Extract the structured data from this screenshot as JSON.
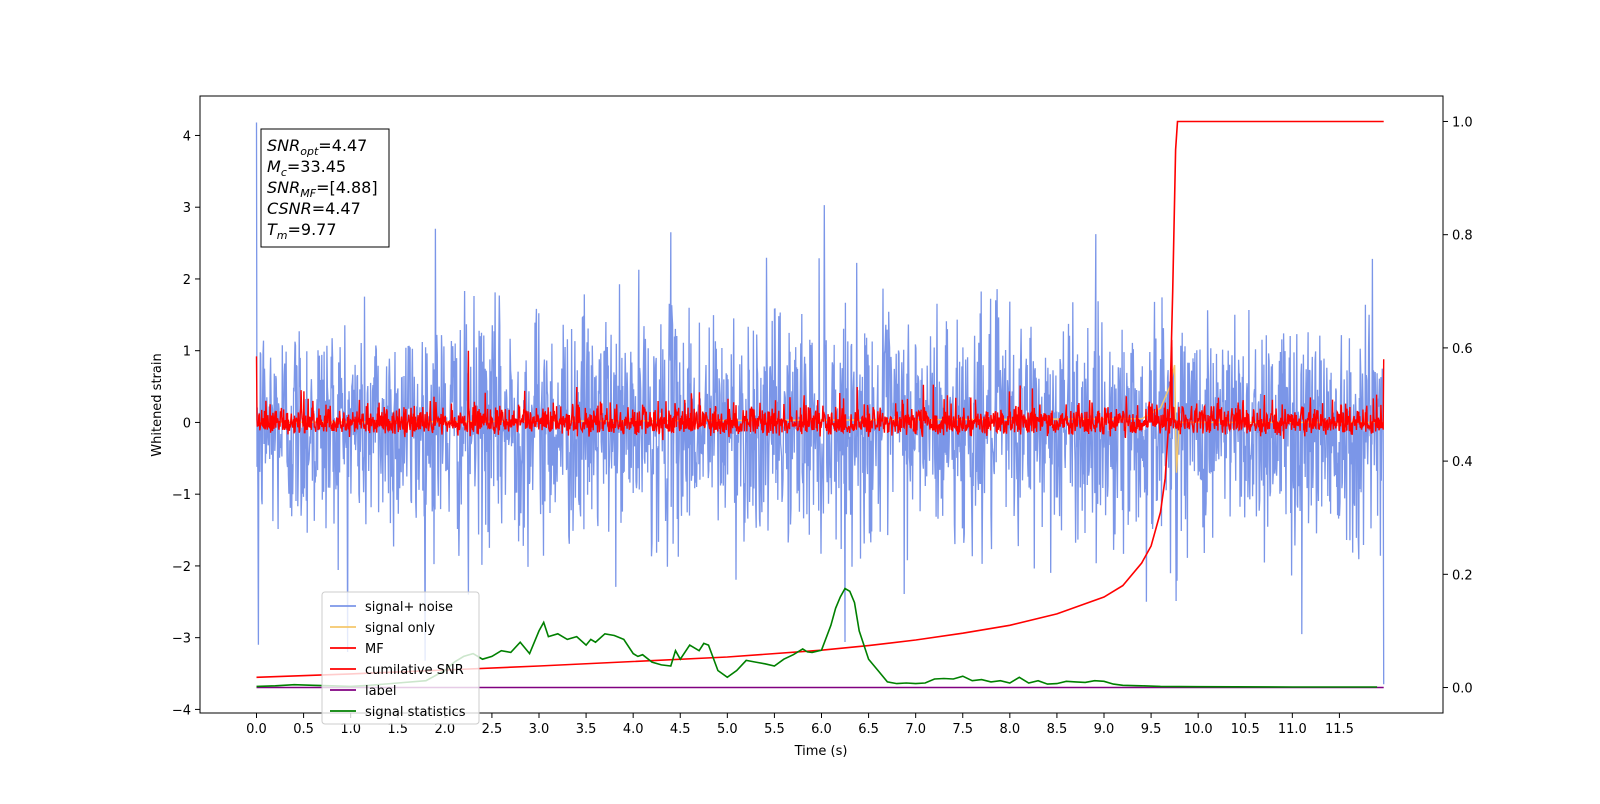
{
  "chart_data": {
    "type": "line",
    "title": "",
    "xlabel": "Time (s)",
    "ylabel": "Whitened strain",
    "xlim": [
      -0.6,
      12.6
    ],
    "ylim": [
      -4.05,
      4.55
    ],
    "y2lim": [
      -0.045,
      1.045
    ],
    "x_ticks": [
      0.0,
      0.5,
      1.0,
      1.5,
      2.0,
      2.5,
      3.0,
      3.5,
      4.0,
      4.5,
      5.0,
      5.5,
      6.0,
      6.5,
      7.0,
      7.5,
      8.0,
      8.5,
      9.0,
      9.5,
      10.0,
      10.5,
      11.0,
      11.5
    ],
    "x_tick_labels": [
      "0.0",
      "0.5",
      "1.0",
      "1.5",
      "2.0",
      "2.5",
      "3.0",
      "3.5",
      "4.0",
      "4.5",
      "5.0",
      "5.5",
      "6.0",
      "6.5",
      "7.0",
      "7.5",
      "8.0",
      "8.5",
      "9.0",
      "9.5",
      "10.0",
      "10.5",
      "11.0",
      "11.5"
    ],
    "y_ticks": [
      -4,
      -3,
      -2,
      -1,
      0,
      1,
      2,
      3,
      4
    ],
    "y_tick_labels": [
      "−4",
      "−3",
      "−2",
      "−1",
      "0",
      "1",
      "2",
      "3",
      "4"
    ],
    "y2_ticks": [
      0.0,
      0.2,
      0.4,
      0.6,
      0.8,
      1.0
    ],
    "y2_tick_labels": [
      "0.0",
      "0.2",
      "0.4",
      "0.6",
      "0.8",
      "1.0"
    ],
    "grid": false,
    "legend_position": "lower-left",
    "series": [
      {
        "name": "signal+ noise",
        "color": "#7b96e8",
        "axis": "left",
        "kind": "noise",
        "t_start": 0.0,
        "t_end": 11.97,
        "amplitude_range": [
          -3.6,
          4.2
        ],
        "peaks": [
          {
            "x": 0.0,
            "y": 4.18
          },
          {
            "x": 0.02,
            "y": -3.1
          },
          {
            "x": 1.9,
            "y": 2.7
          },
          {
            "x": 2.25,
            "y": -2.4
          },
          {
            "x": 4.4,
            "y": 2.65
          },
          {
            "x": 6.03,
            "y": 3.03
          },
          {
            "x": 9.45,
            "y": -2.5
          },
          {
            "x": 11.1,
            "y": -2.95
          },
          {
            "x": 11.85,
            "y": 2.28
          },
          {
            "x": 11.97,
            "y": -3.65
          }
        ]
      },
      {
        "name": "signal only",
        "color": "#f5c76b",
        "axis": "left",
        "kind": "chirp",
        "x": [
          0.0,
          9.4,
          9.6,
          9.7,
          9.75,
          9.77,
          9.8,
          11.97
        ],
        "y": [
          0.0,
          0.05,
          0.2,
          0.5,
          0.8,
          -0.7,
          0.0,
          0.0
        ]
      },
      {
        "name": "MF",
        "color": "#ff0000",
        "axis": "left",
        "kind": "noise",
        "t_start": 0.0,
        "t_end": 11.97,
        "amplitude_range": [
          -0.35,
          1.0
        ],
        "peaks": [
          {
            "x": 0.0,
            "y": 0.92
          },
          {
            "x": 2.25,
            "y": 1.0
          },
          {
            "x": 9.72,
            "y": 1.15
          },
          {
            "x": 11.97,
            "y": 0.88
          }
        ]
      },
      {
        "name": "cumilative SNR",
        "color": "#ff0000",
        "axis": "right",
        "x": [
          0.0,
          1.0,
          2.0,
          3.0,
          4.0,
          5.0,
          6.0,
          6.5,
          7.0,
          7.5,
          8.0,
          8.5,
          9.0,
          9.2,
          9.4,
          9.5,
          9.6,
          9.65,
          9.7,
          9.73,
          9.76,
          9.78,
          11.97
        ],
        "y": [
          0.018,
          0.024,
          0.031,
          0.038,
          0.046,
          0.054,
          0.066,
          0.074,
          0.084,
          0.096,
          0.11,
          0.13,
          0.16,
          0.18,
          0.22,
          0.25,
          0.31,
          0.37,
          0.5,
          0.7,
          0.95,
          1.0,
          1.0
        ]
      },
      {
        "name": "label",
        "color": "#800080",
        "axis": "right",
        "x": [
          0.0,
          11.97
        ],
        "y": [
          0.0,
          0.0
        ]
      },
      {
        "name": "signal statistics",
        "color": "#008000",
        "axis": "right",
        "x": [
          0.0,
          0.2,
          0.4,
          0.6,
          0.8,
          1.0,
          1.2,
          1.5,
          1.8,
          2.0,
          2.1,
          2.2,
          2.3,
          2.4,
          2.5,
          2.6,
          2.7,
          2.8,
          2.9,
          3.0,
          3.05,
          3.1,
          3.2,
          3.3,
          3.4,
          3.5,
          3.55,
          3.6,
          3.7,
          3.8,
          3.9,
          4.0,
          4.05,
          4.1,
          4.2,
          4.3,
          4.4,
          4.45,
          4.5,
          4.6,
          4.7,
          4.75,
          4.8,
          4.9,
          5.0,
          5.1,
          5.2,
          5.3,
          5.4,
          5.5,
          5.6,
          5.7,
          5.8,
          5.85,
          5.9,
          6.0,
          6.1,
          6.15,
          6.2,
          6.25,
          6.3,
          6.35,
          6.4,
          6.5,
          6.6,
          6.7,
          6.8,
          6.9,
          7.0,
          7.1,
          7.2,
          7.3,
          7.4,
          7.5,
          7.6,
          7.7,
          7.8,
          7.9,
          8.0,
          8.1,
          8.2,
          8.3,
          8.4,
          8.5,
          8.6,
          8.7,
          8.8,
          8.9,
          9.0,
          9.1,
          9.2,
          9.4,
          9.6,
          10.0,
          11.0,
          11.9
        ],
        "y": [
          0.002,
          0.003,
          0.005,
          0.004,
          0.003,
          0.002,
          0.004,
          0.008,
          0.012,
          0.03,
          0.045,
          0.055,
          0.06,
          0.05,
          0.055,
          0.065,
          0.062,
          0.08,
          0.06,
          0.1,
          0.115,
          0.09,
          0.095,
          0.085,
          0.09,
          0.075,
          0.085,
          0.08,
          0.095,
          0.092,
          0.085,
          0.06,
          0.055,
          0.058,
          0.045,
          0.04,
          0.038,
          0.065,
          0.05,
          0.075,
          0.065,
          0.078,
          0.075,
          0.03,
          0.018,
          0.03,
          0.048,
          0.045,
          0.042,
          0.038,
          0.05,
          0.058,
          0.068,
          0.063,
          0.062,
          0.066,
          0.11,
          0.14,
          0.16,
          0.175,
          0.17,
          0.15,
          0.1,
          0.05,
          0.03,
          0.01,
          0.007,
          0.008,
          0.007,
          0.008,
          0.015,
          0.016,
          0.015,
          0.02,
          0.012,
          0.014,
          0.01,
          0.012,
          0.008,
          0.018,
          0.008,
          0.012,
          0.006,
          0.007,
          0.011,
          0.01,
          0.009,
          0.012,
          0.011,
          0.006,
          0.004,
          0.003,
          0.002,
          0.0015,
          0.001,
          0.001
        ]
      }
    ],
    "annotation": {
      "lines": [
        {
          "sym": "SNR",
          "sub": "opt",
          "text": "=4.47"
        },
        {
          "sym": "M",
          "sub": "c",
          "text": "=33.45"
        },
        {
          "sym": "SNR",
          "sub": "MF",
          "text": "=[4.88]"
        },
        {
          "sym": "CSNR",
          "sub": "",
          "text": "=4.47"
        },
        {
          "sym": "T",
          "sub": "m",
          "text": "=9.77"
        }
      ]
    }
  }
}
